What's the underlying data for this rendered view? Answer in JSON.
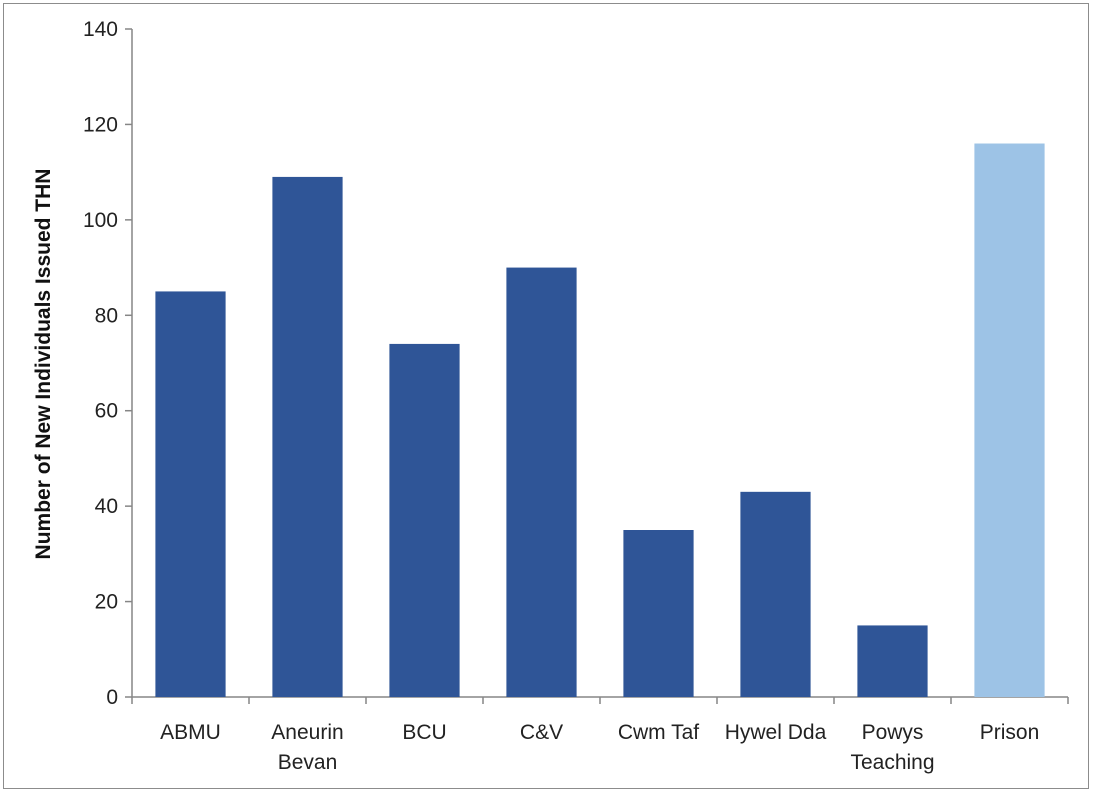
{
  "chart_data": {
    "type": "bar",
    "title": "",
    "xlabel": "",
    "ylabel": "Number of New Individuals Issued THN",
    "ylim": [
      0,
      140
    ],
    "yticks": [
      0,
      20,
      40,
      60,
      80,
      100,
      120,
      140
    ],
    "grid": false,
    "legend": "none",
    "categories": [
      [
        "ABMU"
      ],
      [
        "Aneurin",
        "Bevan"
      ],
      [
        "BCU"
      ],
      [
        "C&V"
      ],
      [
        "Cwm Taf"
      ],
      [
        "Hywel Dda"
      ],
      [
        "Powys",
        "Teaching"
      ],
      [
        "Prison"
      ]
    ],
    "values": [
      85,
      109,
      74,
      90,
      35,
      43,
      15,
      116
    ],
    "colors": [
      "#2f5597",
      "#2f5597",
      "#2f5597",
      "#2f5597",
      "#2f5597",
      "#2f5597",
      "#2f5597",
      "#9dc3e6"
    ]
  }
}
